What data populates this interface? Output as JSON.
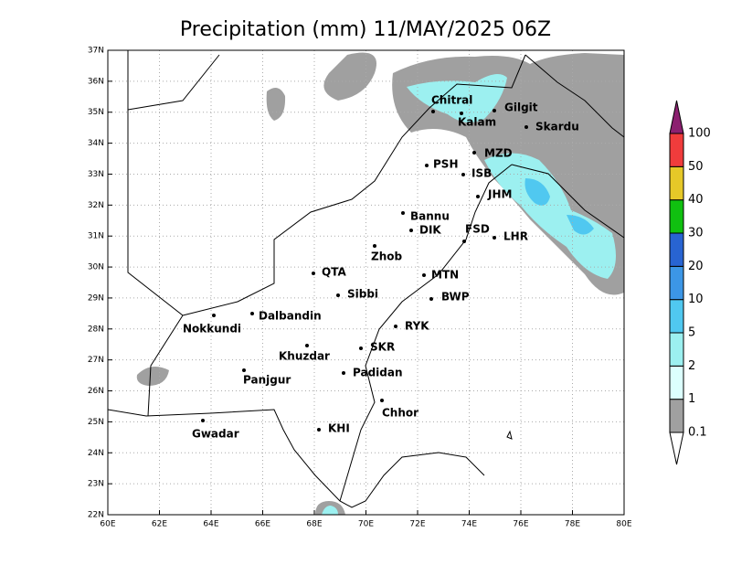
{
  "title": "Precipitation (mm) 11/MAY/2025 06Z",
  "xticks": [
    {
      "value": 60,
      "label": "60E"
    },
    {
      "value": 62,
      "label": "62E"
    },
    {
      "value": 64,
      "label": "64E"
    },
    {
      "value": 66,
      "label": "66E"
    },
    {
      "value": 68,
      "label": "68E"
    },
    {
      "value": 70,
      "label": "70E"
    },
    {
      "value": 72,
      "label": "72E"
    },
    {
      "value": 74,
      "label": "74E"
    },
    {
      "value": 76,
      "label": "76E"
    },
    {
      "value": 78,
      "label": "78E"
    },
    {
      "value": 80,
      "label": "80E"
    }
  ],
  "yticks": [
    {
      "value": 22,
      "label": "22N"
    },
    {
      "value": 23,
      "label": "23N"
    },
    {
      "value": 24,
      "label": "24N"
    },
    {
      "value": 25,
      "label": "25N"
    },
    {
      "value": 26,
      "label": "26N"
    },
    {
      "value": 27,
      "label": "27N"
    },
    {
      "value": 28,
      "label": "28N"
    },
    {
      "value": 29,
      "label": "29N"
    },
    {
      "value": 30,
      "label": "30N"
    },
    {
      "value": 31,
      "label": "31N"
    },
    {
      "value": 32,
      "label": "32N"
    },
    {
      "value": 33,
      "label": "33N"
    },
    {
      "value": 34,
      "label": "34N"
    },
    {
      "value": 35,
      "label": "35N"
    },
    {
      "value": 36,
      "label": "36N"
    },
    {
      "value": 37,
      "label": "37N"
    }
  ],
  "xlim": [
    60,
    80
  ],
  "ylim": [
    22,
    37
  ],
  "cities": [
    "Chitral",
    "Gilgit",
    "Kalam",
    "Skardu",
    "MZD",
    "PSH",
    "ISB",
    "JHM",
    "Bannu",
    "DIK",
    "FSD",
    "LHR",
    "Zhob",
    "QTA",
    "MTN",
    "Sibbi",
    "BWP",
    "Dalbandin",
    "Nokkundi",
    "RYK",
    "Khuzdar",
    "SKR",
    "Panjgur",
    "Padidan",
    "Chhor",
    "KHI",
    "Gwadar"
  ],
  "legend": {
    "levels": [
      0.1,
      1,
      2,
      5,
      10,
      20,
      30,
      40,
      50,
      100
    ],
    "colors": [
      "#ffffff",
      "#a0a0a0",
      "#dcfffe",
      "#9cf0f0",
      "#50c8f0",
      "#3c96e6",
      "#2864d2",
      "#10c010",
      "#e6c828",
      "#f03c3c",
      "#8c2070"
    ]
  }
}
